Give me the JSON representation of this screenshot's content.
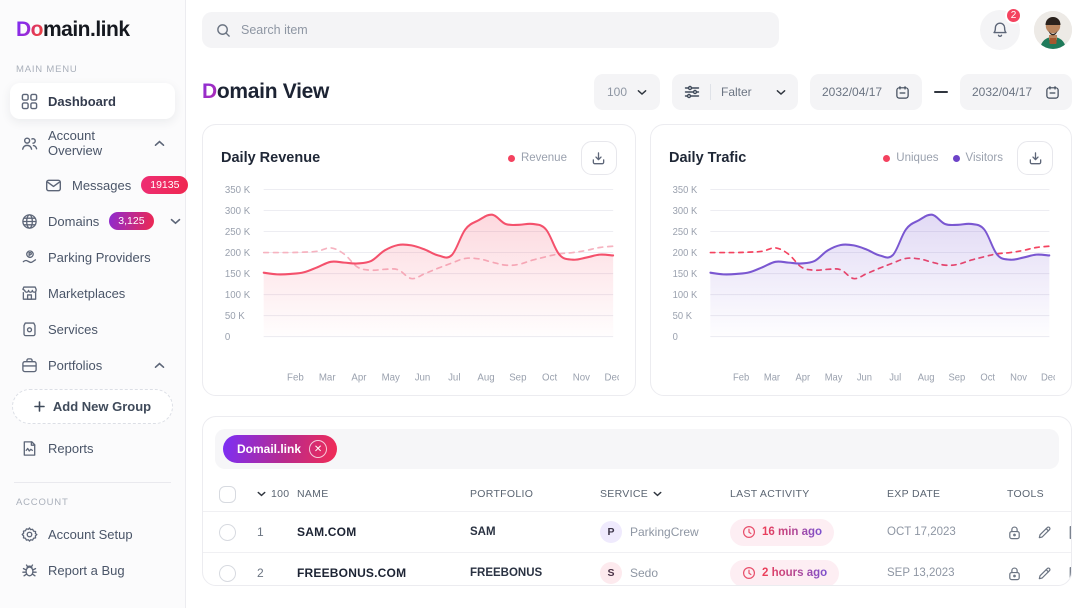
{
  "brand": {
    "logo_d": "D",
    "logo_o": "o",
    "logo_rest": "main.link"
  },
  "topbar": {
    "search_placeholder": "Search item",
    "notification_count": "2"
  },
  "sidebar": {
    "main_menu_label": "MAIN MENU",
    "account_label": "ACCOUNT",
    "items": [
      {
        "label": "Dashboard"
      },
      {
        "label": "Account Overview"
      },
      {
        "label": "Messages",
        "badge": "19135"
      },
      {
        "label": "Domains",
        "badge": "3,125"
      },
      {
        "label": "Parking Providers"
      },
      {
        "label": "Marketplaces"
      },
      {
        "label": "Services"
      },
      {
        "label": "Portfolios"
      },
      {
        "label": "Add New Group"
      },
      {
        "label": "Reports"
      }
    ],
    "account_items": [
      {
        "label": "Account Setup"
      },
      {
        "label": "Report a Bug"
      }
    ]
  },
  "header": {
    "title_accent": "D",
    "title_rest": "omain View",
    "page_size": "100",
    "filter_label": "Falter",
    "date_from": "2032/04/17",
    "date_to": "2032/04/17"
  },
  "chart_data": [
    {
      "type": "line",
      "title": "Daily Revenue",
      "legend": [
        {
          "name": "Revenue",
          "color": "#f4425f"
        }
      ],
      "x_labels": [
        "Feb",
        "Mar",
        "Apr",
        "May",
        "Jun",
        "Jul",
        "Aug",
        "Sep",
        "Oct",
        "Nov",
        "Dec"
      ],
      "y_ticks": [
        "350 K",
        "300 K",
        "250 K",
        "200 K",
        "150 K",
        "100 K",
        "50 K",
        "0"
      ],
      "ylim": [
        0,
        350
      ],
      "grid": true,
      "legend_position": "top-right",
      "series": [
        {
          "name": "Revenue",
          "style": "solid",
          "color": "#f4516c",
          "fill": true,
          "values": [
            152,
            148,
            149,
            153,
            165,
            178,
            176,
            174,
            180,
            205,
            218,
            217,
            207,
            193,
            194,
            255,
            277,
            290,
            268,
            266,
            268,
            255,
            195,
            183,
            188,
            195,
            193
          ]
        },
        {
          "name": "Revenue previous",
          "style": "dashed",
          "color": "#f6b3c0",
          "values": [
            200,
            200,
            200,
            201,
            203,
            211,
            196,
            165,
            158,
            160,
            159,
            138,
            150,
            163,
            175,
            186,
            185,
            177,
            170,
            172,
            182,
            190,
            197,
            200,
            205,
            212,
            215
          ]
        }
      ]
    },
    {
      "type": "line",
      "title": "Daily Trafic",
      "legend": [
        {
          "name": "Uniques",
          "color": "#f4425f"
        },
        {
          "name": "Visitors",
          "color": "#6d43c8"
        }
      ],
      "x_labels": [
        "Feb",
        "Mar",
        "Apr",
        "May",
        "Jun",
        "Jul",
        "Aug",
        "Sep",
        "Oct",
        "Nov",
        "Dec"
      ],
      "y_ticks": [
        "350 K",
        "300 K",
        "250 K",
        "200 K",
        "150 K",
        "100 K",
        "50 K",
        "0"
      ],
      "ylim": [
        0,
        350
      ],
      "grid": true,
      "legend_position": "top-right",
      "series": [
        {
          "name": "Visitors",
          "style": "solid",
          "color": "#7a57d1",
          "fill": true,
          "values": [
            152,
            148,
            149,
            153,
            165,
            178,
            176,
            174,
            180,
            205,
            218,
            217,
            207,
            193,
            194,
            255,
            277,
            290,
            268,
            266,
            268,
            255,
            195,
            183,
            188,
            195,
            193
          ]
        },
        {
          "name": "Uniques",
          "style": "dashed",
          "color": "#f4425f",
          "values": [
            200,
            200,
            200,
            201,
            203,
            211,
            196,
            165,
            158,
            160,
            159,
            138,
            150,
            163,
            175,
            186,
            185,
            177,
            170,
            172,
            182,
            190,
            197,
            200,
            205,
            212,
            215
          ]
        }
      ]
    }
  ],
  "table": {
    "filter_chip": "Domail.link",
    "page_size": "100",
    "columns": [
      "NAME",
      "PORTFOLIO",
      "SERVICE",
      "LAST ACTIVITY",
      "EXP DATE",
      "TOOLS"
    ],
    "rows": [
      {
        "num": "1",
        "name": "SAM.COM",
        "portfolio": "SAM",
        "service_letter": "P",
        "service_name": "ParkingCrew",
        "last_activity": "16 min ago",
        "exp_date": "OCT 17,2023"
      },
      {
        "num": "2",
        "name": "FREEBONUS.COM",
        "portfolio": "FREEBONUS",
        "service_letter": "S",
        "service_name": "Sedo",
        "last_activity": "2 hours ago",
        "exp_date": "SEP 13,2023"
      }
    ],
    "tool_icons": [
      "lock-icon",
      "edit-icon",
      "file-plus-icon",
      "note-plus-icon"
    ]
  },
  "colors": {
    "accent_red": "#f4425f",
    "accent_purple": "#7a57d1",
    "gradient_start": "#7b2ff7",
    "gradient_end": "#f22c55"
  }
}
